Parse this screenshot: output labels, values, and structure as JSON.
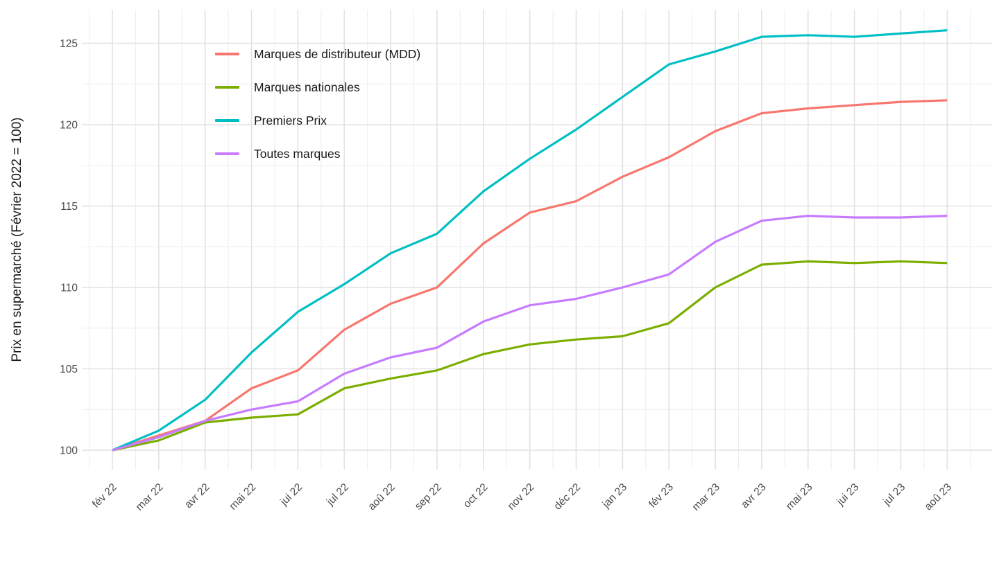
{
  "chart_data": {
    "type": "line",
    "title": "",
    "xlabel": "",
    "ylabel": "Prix en supermarché (Février 2022 = 100)",
    "x_tick_labels": [
      "fév 22",
      "mar 22",
      "avr 22",
      "mai 22",
      "jui 22",
      "jul 22",
      "aoû 22",
      "sep 22",
      "oct 22",
      "nov 22",
      "déc 22",
      "jan 23",
      "fév 23",
      "mar 23",
      "avr 23",
      "mai 23",
      "jui 23",
      "jul 23",
      "aoû 23"
    ],
    "yticks": [
      100,
      105,
      110,
      115,
      120,
      125
    ],
    "ylim": [
      98.8,
      126.8
    ],
    "grid": "white background, light gray major and minor gridlines, no axis lines, no tick marks",
    "legend_position": "inside top-left",
    "series": [
      {
        "name": "Marques de distributeur (MDD)",
        "color": "#F8766D",
        "values": [
          100,
          100.9,
          101.8,
          103.8,
          104.9,
          107.4,
          109.0,
          110.0,
          112.7,
          114.6,
          115.3,
          116.8,
          118.0,
          119.6,
          120.7,
          121.0,
          121.2,
          121.4,
          121.5
        ]
      },
      {
        "name": "Marques nationales",
        "color": "#7CAE00",
        "values": [
          100,
          100.6,
          101.7,
          102.0,
          102.2,
          103.8,
          104.4,
          104.9,
          105.9,
          106.5,
          106.8,
          107.0,
          107.8,
          110.0,
          111.4,
          111.6,
          111.5,
          111.6,
          111.5
        ]
      },
      {
        "name": "Premiers Prix",
        "color": "#00BFC4",
        "values": [
          100,
          101.2,
          103.1,
          106.0,
          108.5,
          110.2,
          112.1,
          113.3,
          115.9,
          117.9,
          119.7,
          121.7,
          123.7,
          124.5,
          125.4,
          125.5,
          125.4,
          125.6,
          125.8
        ]
      },
      {
        "name": "Toutes marques",
        "color": "#C77CFF",
        "values": [
          100,
          100.8,
          101.8,
          102.5,
          103.0,
          104.7,
          105.7,
          106.3,
          107.9,
          108.9,
          109.3,
          110.0,
          110.8,
          112.8,
          114.1,
          114.4,
          114.3,
          114.3,
          114.4
        ]
      }
    ],
    "colors": {
      "background": "#ffffff",
      "grid_major": "#e2e2e2",
      "grid_minor": "#ededed",
      "tick_text": "#4d4d4d",
      "axis_title_text": "#1a1a1a"
    }
  }
}
